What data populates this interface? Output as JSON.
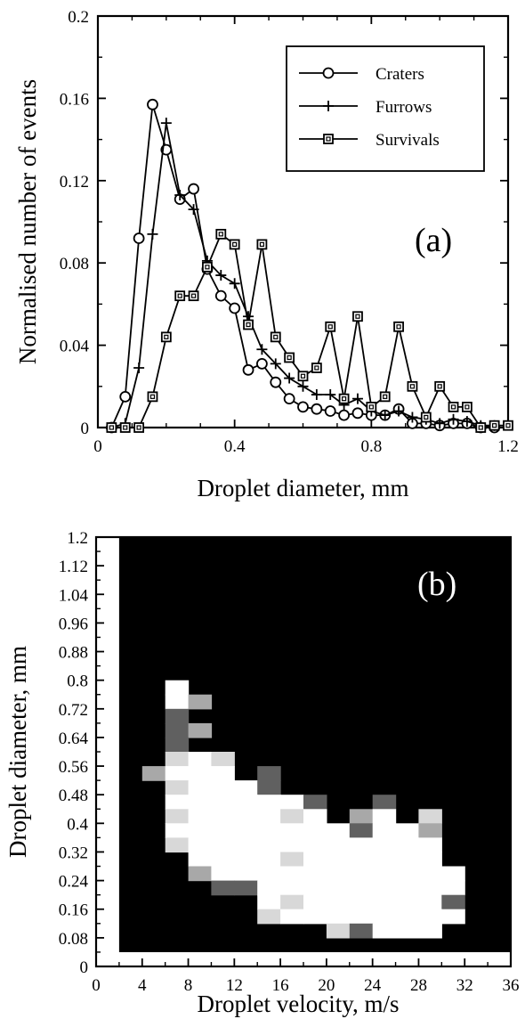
{
  "chart_data": [
    {
      "panel": "a",
      "type": "line",
      "xlabel": "Droplet diameter, mm",
      "ylabel": "Normalised number of events",
      "xlim": [
        0,
        1.2
      ],
      "ylim": [
        0,
        0.2
      ],
      "xticks": [
        "0",
        "0.4",
        "0.8",
        "1.2"
      ],
      "xtick_values": [
        0,
        0.4,
        0.8,
        1.2
      ],
      "yticks": [
        "0",
        "0.04",
        "0.08",
        "0.12",
        "0.16",
        "0.2"
      ],
      "ytick_values": [
        0,
        0.04,
        0.08,
        0.12,
        0.16,
        0.2
      ],
      "annotation": "(a)",
      "legend_position": "top-right",
      "series": [
        {
          "name": "Craters",
          "marker": "circle",
          "points": [
            [
              0.04,
              0
            ],
            [
              0.08,
              0.015
            ],
            [
              0.12,
              0.092
            ],
            [
              0.16,
              0.157
            ],
            [
              0.2,
              0.135
            ],
            [
              0.24,
              0.111
            ],
            [
              0.28,
              0.116
            ],
            [
              0.32,
              0.077
            ],
            [
              0.36,
              0.064
            ],
            [
              0.4,
              0.058
            ],
            [
              0.44,
              0.028
            ],
            [
              0.48,
              0.031
            ],
            [
              0.52,
              0.022
            ],
            [
              0.56,
              0.014
            ],
            [
              0.6,
              0.01
            ],
            [
              0.64,
              0.009
            ],
            [
              0.68,
              0.008
            ],
            [
              0.72,
              0.006
            ],
            [
              0.76,
              0.007
            ],
            [
              0.8,
              0.006
            ],
            [
              0.84,
              0.006
            ],
            [
              0.88,
              0.009
            ],
            [
              0.92,
              0.002
            ],
            [
              0.96,
              0.002
            ],
            [
              1.0,
              0.001
            ],
            [
              1.04,
              0.002
            ],
            [
              1.08,
              0.002
            ],
            [
              1.12,
              0
            ],
            [
              1.16,
              0
            ]
          ]
        },
        {
          "name": "Furrows",
          "marker": "plus",
          "points": [
            [
              0.04,
              0
            ],
            [
              0.08,
              0.002
            ],
            [
              0.12,
              0.029
            ],
            [
              0.16,
              0.094
            ],
            [
              0.2,
              0.148
            ],
            [
              0.24,
              0.113
            ],
            [
              0.28,
              0.106
            ],
            [
              0.32,
              0.081
            ],
            [
              0.36,
              0.074
            ],
            [
              0.4,
              0.07
            ],
            [
              0.44,
              0.054
            ],
            [
              0.48,
              0.038
            ],
            [
              0.52,
              0.031
            ],
            [
              0.56,
              0.024
            ],
            [
              0.6,
              0.02
            ],
            [
              0.64,
              0.016
            ],
            [
              0.68,
              0.016
            ],
            [
              0.72,
              0.011
            ],
            [
              0.76,
              0.014
            ],
            [
              0.8,
              0.008
            ],
            [
              0.84,
              0.006
            ],
            [
              0.88,
              0.008
            ],
            [
              0.92,
              0.005
            ],
            [
              0.96,
              0.004
            ],
            [
              1.0,
              0.002
            ],
            [
              1.04,
              0.004
            ],
            [
              1.08,
              0.003
            ],
            [
              1.12,
              0.001
            ],
            [
              1.16,
              0.001
            ]
          ]
        },
        {
          "name": "Survivals",
          "marker": "square",
          "points": [
            [
              0.04,
              0
            ],
            [
              0.08,
              0
            ],
            [
              0.12,
              0
            ],
            [
              0.16,
              0.015
            ],
            [
              0.2,
              0.044
            ],
            [
              0.24,
              0.064
            ],
            [
              0.28,
              0.064
            ],
            [
              0.32,
              0.078
            ],
            [
              0.36,
              0.094
            ],
            [
              0.4,
              0.089
            ],
            [
              0.44,
              0.05
            ],
            [
              0.48,
              0.089
            ],
            [
              0.52,
              0.044
            ],
            [
              0.56,
              0.034
            ],
            [
              0.6,
              0.025
            ],
            [
              0.64,
              0.029
            ],
            [
              0.68,
              0.049
            ],
            [
              0.72,
              0.014
            ],
            [
              0.76,
              0.054
            ],
            [
              0.8,
              0.01
            ],
            [
              0.84,
              0.015
            ],
            [
              0.88,
              0.049
            ],
            [
              0.92,
              0.02
            ],
            [
              0.96,
              0.005
            ],
            [
              1.0,
              0.02
            ],
            [
              1.04,
              0.01
            ],
            [
              1.08,
              0.01
            ],
            [
              1.12,
              0
            ],
            [
              1.16,
              0.001
            ],
            [
              1.2,
              0.001
            ]
          ]
        }
      ]
    },
    {
      "panel": "b",
      "type": "heatmap",
      "xlabel": "Droplet velocity, m/s",
      "ylabel": "Droplet diameter, mm",
      "xlim": [
        0,
        36
      ],
      "ylim": [
        0,
        1.2
      ],
      "xticks": [
        "0",
        "4",
        "8",
        "12",
        "16",
        "20",
        "24",
        "28",
        "32",
        "36"
      ],
      "xtick_values": [
        0,
        4,
        8,
        12,
        16,
        20,
        24,
        28,
        32,
        36
      ],
      "yticks": [
        "0",
        "0.08",
        "0.16",
        "0.24",
        "0.32",
        "0.4",
        "0.48",
        "0.56",
        "0.64",
        "0.72",
        "0.8",
        "0.88",
        "0.96",
        "1.04",
        "1.12",
        "1.2"
      ],
      "ytick_values": [
        0,
        0.08,
        0.16,
        0.24,
        0.32,
        0.4,
        0.48,
        0.56,
        0.64,
        0.72,
        0.8,
        0.88,
        0.96,
        1.04,
        1.12,
        1.2
      ],
      "annotation": "(b)",
      "background_color": "#000000",
      "cell_width_velocity": 2,
      "cell_height_diameter": 0.04,
      "cell_colors": {
        "1": "#ffffff",
        "2": "#d8d8d8",
        "3": "#a8a8a8",
        "4": "#606060"
      },
      "cells_note": "each row: [velocity_start, diameter_start, intensity_level]",
      "cells": [
        [
          6,
          0.76,
          1
        ],
        [
          6,
          0.72,
          1
        ],
        [
          8,
          0.72,
          3
        ],
        [
          6,
          0.68,
          4
        ],
        [
          6,
          0.64,
          4
        ],
        [
          8,
          0.64,
          3
        ],
        [
          6,
          0.6,
          4
        ],
        [
          6,
          0.56,
          2
        ],
        [
          8,
          0.56,
          1
        ],
        [
          10,
          0.56,
          2
        ],
        [
          4,
          0.52,
          3
        ],
        [
          6,
          0.52,
          1
        ],
        [
          8,
          0.52,
          1
        ],
        [
          10,
          0.52,
          1
        ],
        [
          14,
          0.52,
          4
        ],
        [
          6,
          0.48,
          2
        ],
        [
          8,
          0.48,
          1
        ],
        [
          10,
          0.48,
          1
        ],
        [
          12,
          0.48,
          1
        ],
        [
          14,
          0.48,
          4
        ],
        [
          6,
          0.44,
          1
        ],
        [
          8,
          0.44,
          1
        ],
        [
          10,
          0.44,
          1
        ],
        [
          12,
          0.44,
          1
        ],
        [
          14,
          0.44,
          1
        ],
        [
          16,
          0.44,
          1
        ],
        [
          18,
          0.44,
          4
        ],
        [
          24,
          0.44,
          4
        ],
        [
          6,
          0.4,
          2
        ],
        [
          8,
          0.4,
          1
        ],
        [
          10,
          0.4,
          1
        ],
        [
          12,
          0.4,
          1
        ],
        [
          14,
          0.4,
          1
        ],
        [
          16,
          0.4,
          2
        ],
        [
          18,
          0.4,
          1
        ],
        [
          22,
          0.4,
          3
        ],
        [
          24,
          0.4,
          1
        ],
        [
          28,
          0.4,
          2
        ],
        [
          6,
          0.36,
          1
        ],
        [
          8,
          0.36,
          1
        ],
        [
          10,
          0.36,
          1
        ],
        [
          12,
          0.36,
          1
        ],
        [
          14,
          0.36,
          1
        ],
        [
          16,
          0.36,
          1
        ],
        [
          18,
          0.36,
          1
        ],
        [
          20,
          0.36,
          1
        ],
        [
          22,
          0.36,
          4
        ],
        [
          24,
          0.36,
          1
        ],
        [
          26,
          0.36,
          1
        ],
        [
          28,
          0.36,
          3
        ],
        [
          6,
          0.32,
          2
        ],
        [
          8,
          0.32,
          1
        ],
        [
          10,
          0.32,
          1
        ],
        [
          12,
          0.32,
          1
        ],
        [
          14,
          0.32,
          1
        ],
        [
          16,
          0.32,
          1
        ],
        [
          18,
          0.32,
          1
        ],
        [
          20,
          0.32,
          1
        ],
        [
          22,
          0.32,
          1
        ],
        [
          24,
          0.32,
          1
        ],
        [
          26,
          0.32,
          1
        ],
        [
          28,
          0.32,
          1
        ],
        [
          8,
          0.28,
          1
        ],
        [
          10,
          0.28,
          1
        ],
        [
          12,
          0.28,
          1
        ],
        [
          14,
          0.28,
          1
        ],
        [
          16,
          0.28,
          2
        ],
        [
          18,
          0.28,
          1
        ],
        [
          20,
          0.28,
          1
        ],
        [
          22,
          0.28,
          1
        ],
        [
          24,
          0.28,
          1
        ],
        [
          26,
          0.28,
          1
        ],
        [
          28,
          0.28,
          1
        ],
        [
          8,
          0.24,
          3
        ],
        [
          10,
          0.24,
          1
        ],
        [
          12,
          0.24,
          1
        ],
        [
          14,
          0.24,
          1
        ],
        [
          16,
          0.24,
          1
        ],
        [
          18,
          0.24,
          1
        ],
        [
          20,
          0.24,
          1
        ],
        [
          22,
          0.24,
          1
        ],
        [
          24,
          0.24,
          1
        ],
        [
          26,
          0.24,
          1
        ],
        [
          28,
          0.24,
          1
        ],
        [
          30,
          0.24,
          1
        ],
        [
          10,
          0.2,
          4
        ],
        [
          12,
          0.2,
          4
        ],
        [
          14,
          0.2,
          1
        ],
        [
          16,
          0.2,
          1
        ],
        [
          18,
          0.2,
          1
        ],
        [
          20,
          0.2,
          1
        ],
        [
          22,
          0.2,
          1
        ],
        [
          24,
          0.2,
          1
        ],
        [
          26,
          0.2,
          1
        ],
        [
          28,
          0.2,
          1
        ],
        [
          30,
          0.2,
          1
        ],
        [
          14,
          0.16,
          1
        ],
        [
          16,
          0.16,
          2
        ],
        [
          18,
          0.16,
          1
        ],
        [
          20,
          0.16,
          1
        ],
        [
          22,
          0.16,
          1
        ],
        [
          24,
          0.16,
          1
        ],
        [
          26,
          0.16,
          1
        ],
        [
          28,
          0.16,
          1
        ],
        [
          30,
          0.16,
          4
        ],
        [
          14,
          0.12,
          2
        ],
        [
          16,
          0.12,
          1
        ],
        [
          18,
          0.12,
          1
        ],
        [
          20,
          0.12,
          1
        ],
        [
          22,
          0.12,
          1
        ],
        [
          24,
          0.12,
          1
        ],
        [
          26,
          0.12,
          1
        ],
        [
          28,
          0.12,
          1
        ],
        [
          30,
          0.12,
          1
        ],
        [
          20,
          0.08,
          2
        ],
        [
          22,
          0.08,
          4
        ],
        [
          24,
          0.08,
          1
        ],
        [
          26,
          0.08,
          1
        ],
        [
          28,
          0.08,
          1
        ]
      ]
    }
  ]
}
